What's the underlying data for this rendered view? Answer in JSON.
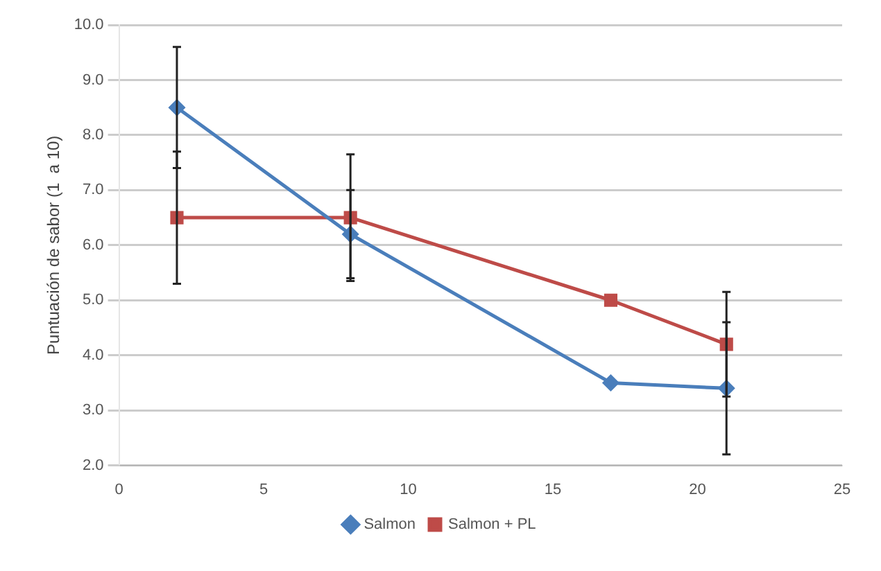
{
  "chart_data": {
    "type": "line",
    "ylabel": "Puntuación de sabor (1  a 10)",
    "xlim": [
      0,
      25
    ],
    "xticks": [
      0,
      5,
      10,
      15,
      20,
      25
    ],
    "ylim": [
      2,
      10
    ],
    "yticks": [
      {
        "value": 2,
        "label": "2.0"
      },
      {
        "value": 3,
        "label": "3.0"
      },
      {
        "value": 4,
        "label": "4.0"
      },
      {
        "value": 5,
        "label": "5.0"
      },
      {
        "value": 6,
        "label": "6.0"
      },
      {
        "value": 7,
        "label": "7.0"
      },
      {
        "value": 8,
        "label": "8.0"
      },
      {
        "value": 9,
        "label": "9.0"
      },
      {
        "value": 10,
        "label": "10.0"
      }
    ],
    "grid": "y",
    "legend": "bottom",
    "line_style": "solid",
    "series": [
      {
        "name": "Salmon",
        "color": "#4a7ebb",
        "marker": "diamond",
        "x": [
          2,
          8,
          17,
          21
        ],
        "values": [
          8.5,
          6.2,
          3.5,
          3.4
        ],
        "errors": [
          [
            7.4,
            9.6
          ],
          [
            5.4,
            7.0
          ],
          null,
          [
            2.2,
            4.6
          ]
        ]
      },
      {
        "name": "Salmon + PL",
        "color": "#be4b48",
        "marker": "square",
        "x": [
          2,
          8,
          17,
          21
        ],
        "values": [
          6.5,
          6.5,
          5.0,
          4.2
        ],
        "errors": [
          [
            5.3,
            7.7
          ],
          [
            5.35,
            7.65
          ],
          null,
          [
            3.25,
            5.15
          ]
        ]
      }
    ]
  }
}
